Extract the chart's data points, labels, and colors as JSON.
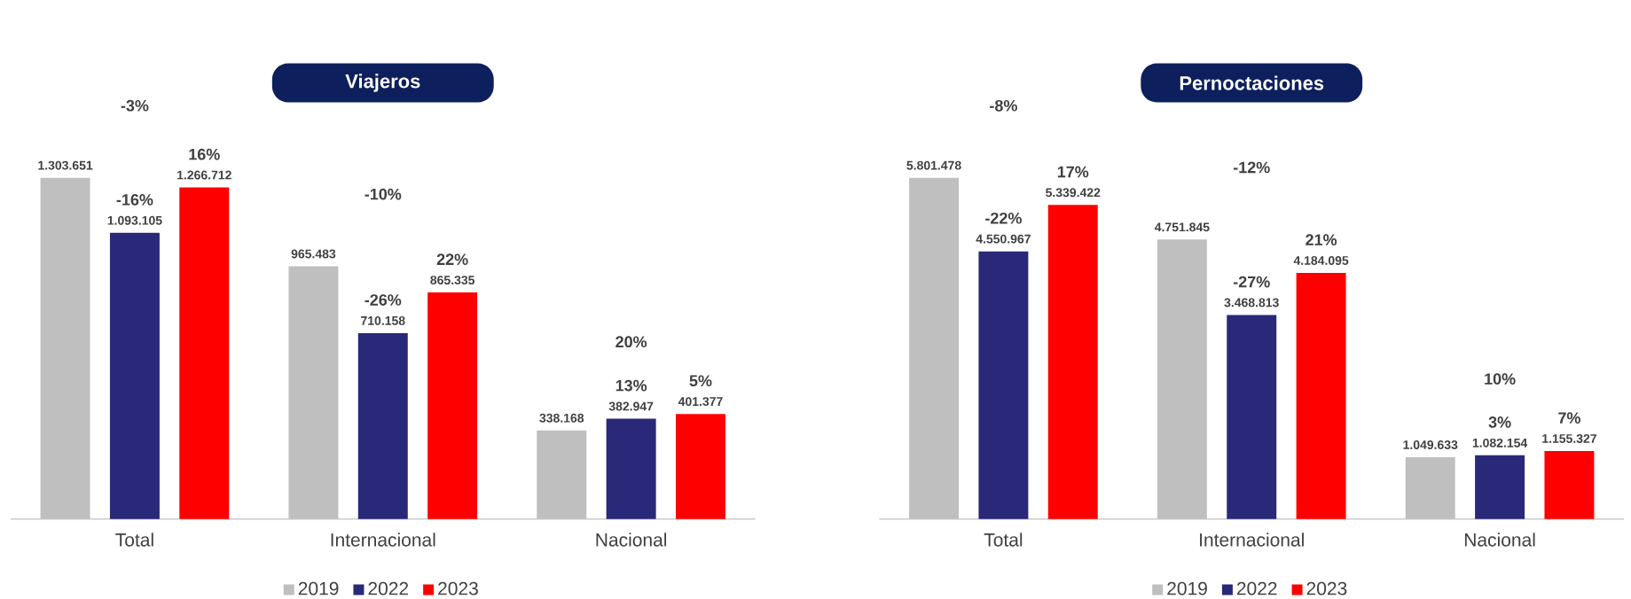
{
  "chart_data": [
    {
      "type": "bar",
      "title": "Viajeros",
      "categories": [
        "Total",
        "Internacional",
        "Nacional"
      ],
      "tick_labels": "x",
      "legend": "bottom",
      "series": [
        {
          "name": "2019",
          "color": "#bfbfbf",
          "values": [
            1303651,
            965483,
            338168
          ],
          "value_labels": [
            "1.303.651",
            "965.483",
            "338.168"
          ]
        },
        {
          "name": "2022",
          "color": "#2a2878",
          "values": [
            1093105,
            710158,
            382947
          ],
          "value_labels": [
            "1.093.105",
            "710.158",
            "382.947"
          ]
        },
        {
          "name": "2023",
          "color": "#ff0000",
          "values": [
            1266712,
            865335,
            401377
          ],
          "value_labels": [
            "1.266.712",
            "865.335",
            "401.377"
          ]
        }
      ],
      "annotations": [
        "-3%",
        "-16%",
        "16%",
        "-10%",
        "-26%",
        "22%",
        "20%",
        "13%",
        "5%"
      ]
    },
    {
      "type": "bar",
      "title": "Pernoctaciones",
      "categories": [
        "Total",
        "Internacional",
        "Nacional"
      ],
      "tick_labels": "x",
      "legend": "bottom",
      "series": [
        {
          "name": "2019",
          "color": "#bfbfbf",
          "values": [
            5801478,
            4751845,
            1049633
          ],
          "value_labels": [
            "5.801.478",
            "4.751.845",
            "1.049.633"
          ]
        },
        {
          "name": "2022",
          "color": "#2a2878",
          "values": [
            4550967,
            3468813,
            1082154
          ],
          "value_labels": [
            "4.550.967",
            "3.468.813",
            "1.082.154"
          ]
        },
        {
          "name": "2023",
          "color": "#ff0000",
          "values": [
            5339422,
            4184095,
            1155327
          ],
          "value_labels": [
            "5.339.422",
            "4.184.095",
            "1.155.327"
          ]
        }
      ],
      "annotations": [
        "-8%",
        "-22%",
        "17%",
        "-12%",
        "-27%",
        "21%",
        "10%",
        "3%",
        "7%"
      ]
    }
  ]
}
